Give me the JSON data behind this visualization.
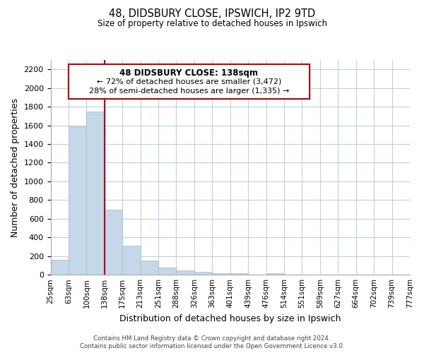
{
  "title": "48, DIDSBURY CLOSE, IPSWICH, IP2 9TD",
  "subtitle": "Size of property relative to detached houses in Ipswich",
  "xlabel": "Distribution of detached houses by size in Ipswich",
  "ylabel": "Number of detached properties",
  "bin_labels": [
    "25sqm",
    "63sqm",
    "100sqm",
    "138sqm",
    "175sqm",
    "213sqm",
    "251sqm",
    "288sqm",
    "326sqm",
    "363sqm",
    "401sqm",
    "439sqm",
    "476sqm",
    "514sqm",
    "551sqm",
    "589sqm",
    "627sqm",
    "664sqm",
    "702sqm",
    "739sqm",
    "777sqm"
  ],
  "bar_values": [
    160,
    1590,
    1750,
    700,
    315,
    155,
    80,
    48,
    30,
    20,
    15,
    0,
    20,
    0,
    0,
    0,
    0,
    0,
    0,
    0
  ],
  "bar_color": "#c5d8ea",
  "bar_edge_color": "#a0bdd4",
  "vline_color": "#cc0000",
  "vline_idx": 3,
  "annotation_line1": "48 DIDSBURY CLOSE: 138sqm",
  "annotation_line2": "← 72% of detached houses are smaller (3,472)",
  "annotation_line3": "28% of semi-detached houses are larger (1,335) →",
  "ylim": [
    0,
    2300
  ],
  "yticks": [
    0,
    200,
    400,
    600,
    800,
    1000,
    1200,
    1400,
    1600,
    1800,
    2000,
    2200
  ],
  "footer1": "Contains HM Land Registry data © Crown copyright and database right 2024.",
  "footer2": "Contains public sector information licensed under the Open Government Licence v3.0.",
  "background_color": "#ffffff",
  "grid_color": "#c0d0e0"
}
